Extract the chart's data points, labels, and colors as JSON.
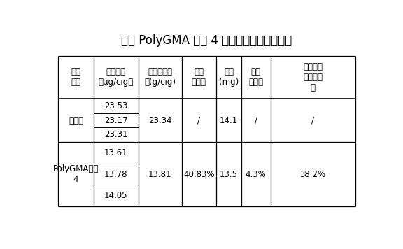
{
  "title": "表四 PolyGMA 材料 4 降低苯酚释放量的结果",
  "col_headers": [
    "样品\n名称",
    "苯酚总量\n（μg/cig）",
    "苯酚总量平\n均(g/cig)",
    "苯酚\n降低率",
    "焦油\n(mg)",
    "焦油\n降低率",
    "单位焦油\n苯酚降低\n率"
  ],
  "row1_name": "对照样",
  "row1_values": [
    "23.53",
    "23.17",
    "23.31"
  ],
  "row1_avg": "23.34",
  "row1_phenol_reduce": "/",
  "row1_tar": "14.1",
  "row1_tar_reduce": "/",
  "row1_unit": "/",
  "row2_name": "PolyGMA材料\n4",
  "row2_values": [
    "13.61",
    "13.78",
    "14.05"
  ],
  "row2_avg": "13.81",
  "row2_phenol_reduce": "40.83%",
  "row2_tar": "13.5",
  "row2_tar_reduce": "4.3%",
  "row2_unit": "38.2%",
  "bg_color": "#ffffff",
  "line_color": "#000000",
  "title_fontsize": 12,
  "cell_fontsize": 8.5
}
